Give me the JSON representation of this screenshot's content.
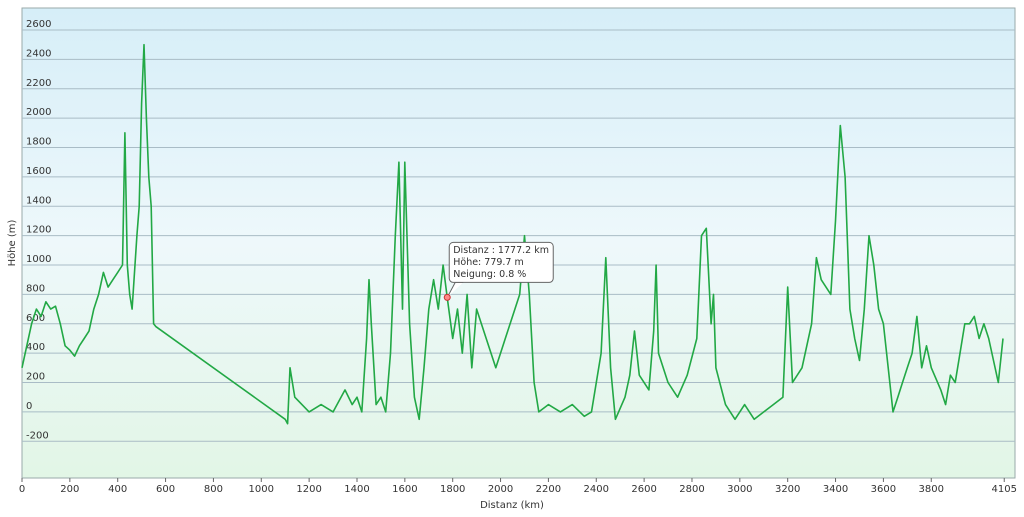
{
  "chart_data": {
    "type": "line",
    "xlabel": "Distanz  (km)",
    "ylabel": "Höhe (m)",
    "x": [
      0,
      20,
      40,
      60,
      80,
      100,
      120,
      140,
      160,
      180,
      200,
      220,
      240,
      260,
      280,
      300,
      320,
      340,
      360,
      380,
      400,
      420,
      430,
      440,
      450,
      460,
      480,
      490,
      500,
      510,
      520,
      530,
      540,
      550,
      560,
      1100,
      1110,
      1120,
      1140,
      1200,
      1250,
      1300,
      1350,
      1380,
      1400,
      1420,
      1440,
      1450,
      1460,
      1480,
      1500,
      1520,
      1540,
      1560,
      1575,
      1590,
      1600,
      1620,
      1640,
      1660,
      1680,
      1700,
      1720,
      1740,
      1760,
      1777.2,
      1800,
      1820,
      1840,
      1860,
      1880,
      1900,
      1940,
      1980,
      2020,
      2060,
      2080,
      2100,
      2120,
      2140,
      2160,
      2200,
      2250,
      2300,
      2350,
      2380,
      2400,
      2420,
      2440,
      2460,
      2480,
      2520,
      2540,
      2560,
      2580,
      2620,
      2640,
      2650,
      2660,
      2700,
      2740,
      2780,
      2820,
      2840,
      2860,
      2880,
      2890,
      2900,
      2940,
      2980,
      3020,
      3060,
      3100,
      3140,
      3180,
      3200,
      3220,
      3260,
      3300,
      3320,
      3340,
      3380,
      3400,
      3420,
      3440,
      3460,
      3480,
      3500,
      3520,
      3540,
      3560,
      3580,
      3600,
      3620,
      3640,
      3660,
      3680,
      3700,
      3720,
      3740,
      3760,
      3780,
      3800,
      3840,
      3860,
      3880,
      3900,
      3920,
      3940,
      3960,
      3980,
      4000,
      4020,
      4040,
      4060,
      4080,
      4100
    ],
    "series": [
      {
        "color": "#22a845",
        "values": [
          300,
          450,
          600,
          700,
          650,
          750,
          700,
          720,
          600,
          450,
          420,
          380,
          450,
          500,
          550,
          700,
          800,
          950,
          850,
          900,
          950,
          1000,
          1900,
          1000,
          800,
          700,
          1200,
          1400,
          2100,
          2500,
          2000,
          1600,
          1400,
          600,
          580,
          -50,
          -80,
          300,
          100,
          0,
          50,
          0,
          150,
          50,
          100,
          0,
          500,
          900,
          600,
          50,
          100,
          0,
          400,
          1200,
          1700,
          700,
          1700,
          600,
          100,
          -50,
          300,
          700,
          900,
          700,
          1000,
          779.7,
          500,
          700,
          400,
          800,
          300,
          700,
          500,
          300,
          500,
          700,
          800,
          1200,
          800,
          200,
          0,
          50,
          0,
          50,
          -30,
          0,
          200,
          400,
          1050,
          300,
          -50,
          100,
          250,
          550,
          250,
          150,
          550,
          1000,
          400,
          200,
          100,
          250,
          500,
          1200,
          1250,
          600,
          800,
          300,
          50,
          -50,
          50,
          -50,
          0,
          50,
          100,
          850,
          200,
          300,
          600,
          1050,
          900,
          800,
          1300,
          1950,
          1600,
          700,
          500,
          350,
          700,
          1200,
          1000,
          700,
          600,
          300,
          0,
          100,
          200,
          300,
          400,
          650,
          300,
          450,
          300,
          150,
          50,
          250,
          200,
          400,
          600,
          600,
          650,
          500,
          600,
          500,
          350,
          200,
          500
        ]
      }
    ],
    "xlim": [
      0,
      4150
    ],
    "xticks": [
      0,
      200,
      400,
      600,
      800,
      1000,
      1200,
      1400,
      1600,
      1800,
      2000,
      2200,
      2400,
      2600,
      2800,
      3000,
      3200,
      3400,
      3600,
      3800,
      4105
    ],
    "ylim": [
      -450,
      2750
    ],
    "yticks": [
      -200,
      0,
      200,
      400,
      600,
      800,
      1000,
      1200,
      1400,
      1600,
      1800,
      2000,
      2200,
      2400,
      2600
    ],
    "grid": true,
    "highlight": {
      "x": 1777.2,
      "y": 779.7
    },
    "tooltip": [
      "Distanz : 1777.2 km",
      "Höhe: 779.7 m",
      "Neigung: 0.8 %"
    ]
  }
}
